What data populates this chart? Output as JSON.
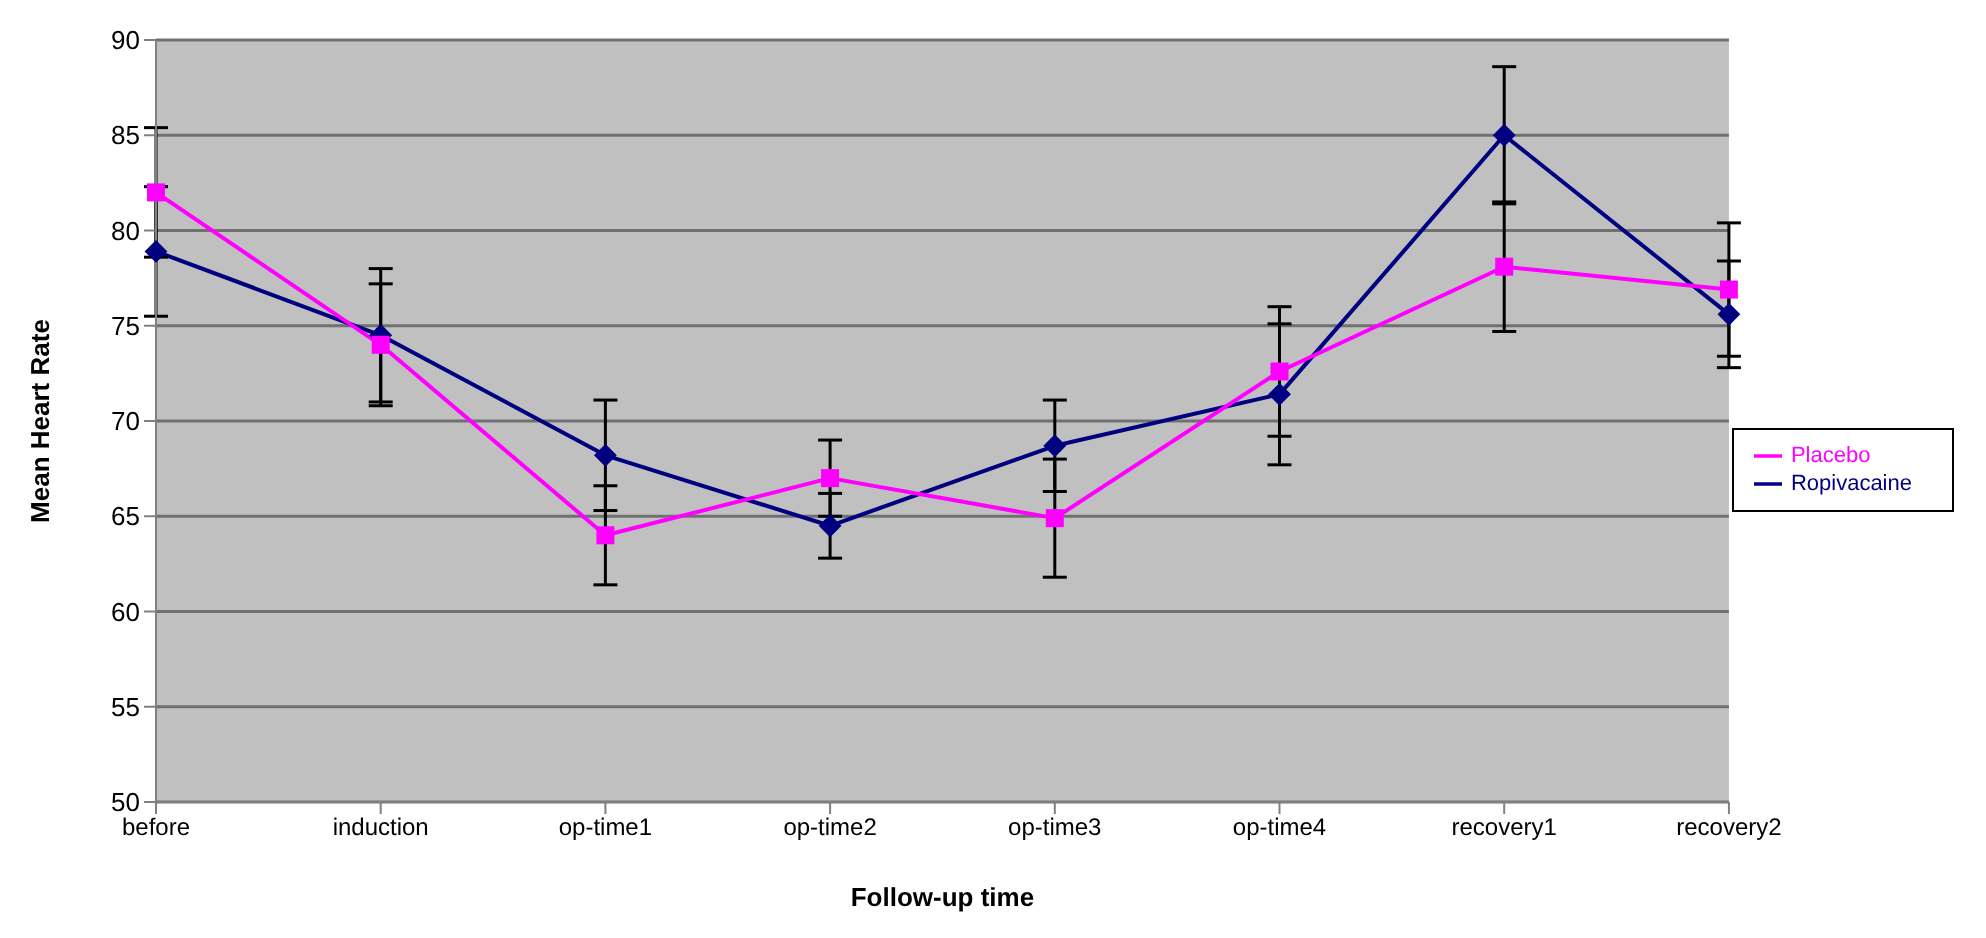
{
  "chart_data": {
    "type": "line",
    "xlabel": "Follow-up time",
    "ylabel": "Mean Heart Rate",
    "categories": [
      "before",
      "induction",
      "op-time1",
      "op-time2",
      "op-time3",
      "op-time4",
      "recovery1",
      "recovery2"
    ],
    "series": [
      {
        "name": "Ropivacaine",
        "color": "#000080",
        "marker": "diamond",
        "values": [
          78.9,
          74.5,
          68.2,
          64.5,
          68.7,
          71.4,
          85.0,
          75.6
        ],
        "errors": [
          3.4,
          3.5,
          2.9,
          1.7,
          2.4,
          3.7,
          3.6,
          2.8
        ]
      },
      {
        "name": "Placebo",
        "color": "#ff00ff",
        "marker": "square",
        "values": [
          82.0,
          74.0,
          64.0,
          67.0,
          64.9,
          72.6,
          78.1,
          76.9
        ],
        "errors": [
          3.4,
          3.2,
          2.6,
          2.0,
          3.1,
          3.4,
          3.4,
          3.5
        ]
      }
    ],
    "ylim": [
      50,
      90
    ],
    "yticks": [
      50,
      55,
      60,
      65,
      70,
      75,
      80,
      85,
      90
    ],
    "grid": "y",
    "legend": "right"
  }
}
